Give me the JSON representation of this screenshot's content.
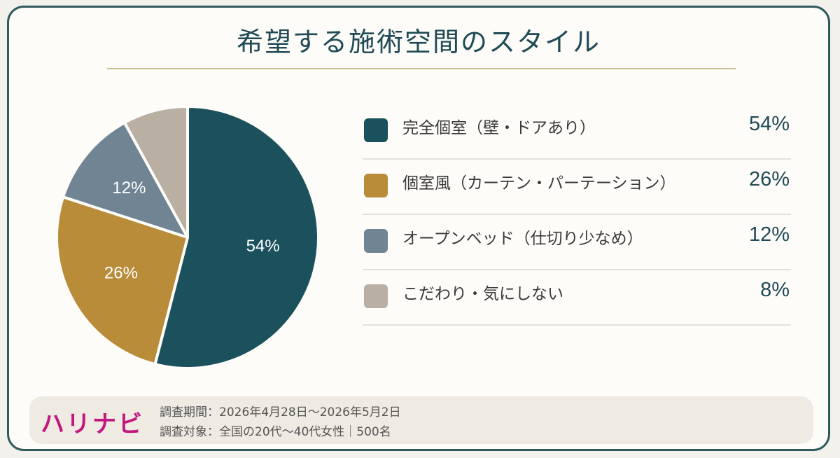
{
  "chart_data": {
    "type": "pie",
    "title": "希望する施術空間のスタイル",
    "slices": [
      {
        "label": "完全個室（壁・ドアあり）",
        "value": 54,
        "display": "54%",
        "color": "#1b515c"
      },
      {
        "label": "個室風（カーテン・パーテーション）",
        "value": 26,
        "display": "26%",
        "color": "#b88c38"
      },
      {
        "label": "オープンベッド（仕切り少なめ）",
        "value": 12,
        "display": "12%",
        "color": "#708493"
      },
      {
        "label": "こだわり・気にしない",
        "value": 8,
        "display": "8%",
        "color": "#b9afa3"
      }
    ],
    "slice_labels_shown": [
      "54%",
      "26%",
      "12%"
    ],
    "legend_position": "right"
  },
  "footer": {
    "brand": "ハリナビ",
    "survey_period": "調査期間：2026年4月28日～2026年5月2日",
    "survey_target": "調査対象：全国の20代～40代女性｜500名"
  },
  "colors": {
    "frame": "#2f5a5e",
    "title": "#1f4a56",
    "rule": "#cdbf8f",
    "brand": "#c2187e"
  }
}
